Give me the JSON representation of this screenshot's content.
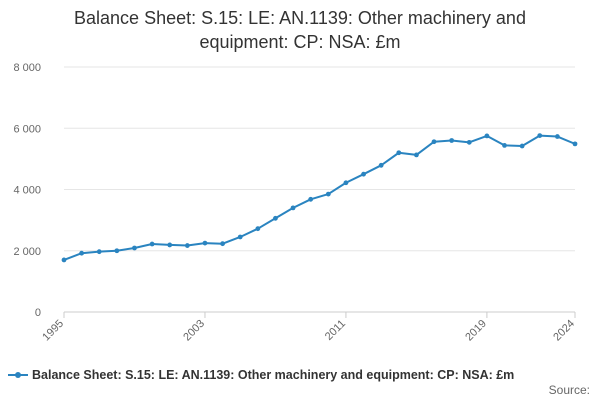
{
  "chart_data": {
    "type": "line",
    "title_lines": [
      "Balance Sheet: S.15: LE: AN.1139: Other machinery and",
      "equipment: CP: NSA: £m"
    ],
    "x": [
      1995,
      1996,
      1997,
      1998,
      1999,
      2000,
      2001,
      2002,
      2003,
      2004,
      2005,
      2006,
      2007,
      2008,
      2009,
      2010,
      2011,
      2012,
      2013,
      2014,
      2015,
      2016,
      2017,
      2018,
      2019,
      2020,
      2021,
      2022,
      2023,
      2024
    ],
    "series": [
      {
        "name": "Balance Sheet: S.15: LE: AN.1139: Other machinery and equipment: CP: NSA: £m",
        "values": [
          1700,
          1920,
          1970,
          2000,
          2090,
          2220,
          2190,
          2170,
          2250,
          2230,
          2450,
          2720,
          3060,
          3400,
          3680,
          3850,
          4220,
          4500,
          4790,
          5200,
          5130,
          5560,
          5600,
          5540,
          5750,
          5440,
          5420,
          5760,
          5730,
          5490
        ]
      }
    ],
    "x_tick_labels": [
      "1995",
      "2003",
      "2011",
      "2019",
      "2024"
    ],
    "y_tick_labels": [
      "0",
      "2 000",
      "4 000",
      "6 000",
      "8 000"
    ],
    "y_ticks": [
      0,
      2000,
      4000,
      6000,
      8000
    ],
    "ylim": [
      0,
      8000
    ],
    "xlim": [
      1995,
      2024
    ],
    "grid": true,
    "legend_position": "bottom-left",
    "source_label": "Source:"
  },
  "colors": {
    "series": "#2a84c0",
    "grid": "#e6e6e6",
    "axis": "#cccccc",
    "tick_text": "#666666"
  }
}
